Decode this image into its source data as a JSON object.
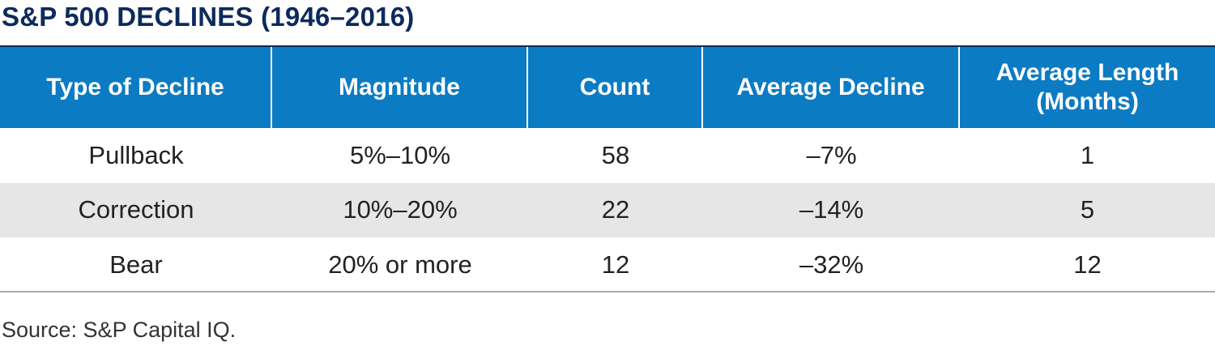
{
  "header": {
    "title": "S&P 500 DECLINES (1946–2016)"
  },
  "table": {
    "columns": [
      "Type of Decline",
      "Magnitude",
      "Count",
      "Average Decline",
      "Average Length (Months)"
    ],
    "rows": [
      [
        "Pullback",
        "5%–10%",
        "58",
        "–7%",
        "1"
      ],
      [
        "Correction",
        "10%–20%",
        "22",
        "–14%",
        "5"
      ],
      [
        "Bear",
        "20% or more",
        "12",
        "–32%",
        "12"
      ]
    ]
  },
  "footer": {
    "source": "Source: S&P Capital IQ."
  }
}
